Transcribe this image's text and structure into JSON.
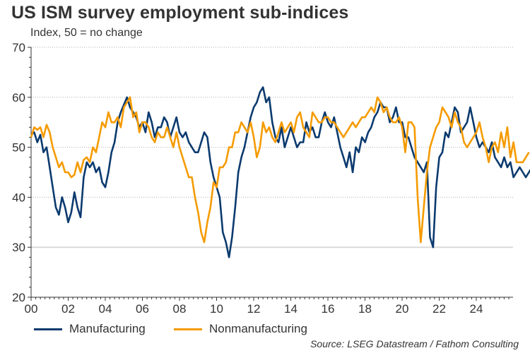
{
  "chart_data": {
    "type": "line",
    "title": "US ISM survey employment sub-indices",
    "subtitle": "Index, 50 = no change",
    "xlabel": "",
    "ylabel": "",
    "ylim": [
      20,
      70
    ],
    "xlim": [
      2000,
      2026
    ],
    "yticks": [
      20,
      30,
      40,
      50,
      60,
      70
    ],
    "xticks": [
      2000,
      2002,
      2004,
      2006,
      2008,
      2010,
      2012,
      2014,
      2016,
      2018,
      2020,
      2022,
      2024
    ],
    "xtick_labels": [
      "00",
      "02",
      "04",
      "06",
      "08",
      "10",
      "12",
      "14",
      "16",
      "18",
      "20",
      "22",
      "24"
    ],
    "grid": true,
    "legend_position": "bottom-left",
    "source": "Source: LSEG Datastream / Fathom Consulting",
    "x_step_years": 0.1667,
    "x_start": 2000.0,
    "series": [
      {
        "name": "Manufacturing",
        "color": "#0b3a6e",
        "values": [
          52.5,
          53,
          51,
          52.5,
          49,
          50,
          46,
          42,
          38,
          36.5,
          40,
          38,
          35,
          37,
          41,
          38,
          36,
          44,
          47,
          46,
          47,
          45,
          46,
          43,
          42,
          45,
          49,
          51,
          55,
          57,
          58.5,
          60,
          58,
          57,
          56,
          54,
          55,
          53,
          57,
          55,
          52,
          54,
          54,
          56,
          55,
          52,
          54,
          56,
          53,
          52,
          53,
          51,
          50,
          49,
          49,
          51,
          53,
          52,
          47,
          44,
          42,
          40,
          33,
          31,
          28,
          32,
          38,
          45,
          48,
          50,
          53,
          56,
          58,
          59,
          61,
          62,
          59,
          60,
          55,
          52,
          51,
          54,
          50,
          52,
          54,
          52,
          50,
          51,
          51,
          55,
          53,
          54,
          52,
          52,
          55,
          57,
          55,
          54,
          56,
          53,
          50,
          48,
          46,
          49,
          45,
          50,
          49,
          52,
          51,
          53,
          54,
          56,
          57,
          59,
          58,
          58,
          55,
          56,
          58,
          55,
          55,
          52,
          52,
          50,
          48,
          47,
          46,
          45,
          47,
          32,
          30,
          42,
          48,
          49,
          53,
          52,
          55,
          58,
          57,
          53,
          54,
          55,
          58,
          55,
          52,
          50,
          51,
          50,
          49,
          51,
          48,
          47,
          46,
          48,
          46,
          47,
          44,
          45,
          46,
          45,
          44,
          45,
          46,
          44
        ]
      },
      {
        "name": "Nonmanufacturing",
        "color": "#f59b00",
        "values": [
          52,
          54,
          53.5,
          54,
          52,
          54.5,
          53,
          50,
          48,
          46,
          47,
          45,
          45,
          44,
          44.5,
          47,
          45,
          47.5,
          48,
          47,
          50,
          49,
          52,
          55,
          54,
          57,
          55,
          55,
          56,
          54,
          58,
          59,
          60,
          56,
          57,
          53,
          55,
          55,
          54,
          52,
          51,
          53,
          52,
          52,
          54,
          52,
          50,
          53,
          50,
          48,
          46,
          44,
          44,
          40,
          37,
          33,
          31,
          35,
          38,
          43,
          42,
          46,
          46,
          47,
          50,
          50,
          53,
          53,
          55,
          54,
          53,
          55,
          52,
          48,
          50,
          55,
          53,
          54,
          52,
          51,
          53,
          55,
          53,
          54,
          55,
          53,
          56,
          57,
          54,
          53,
          52,
          57,
          56,
          55,
          55,
          56,
          56,
          55,
          55,
          54,
          53,
          52,
          53,
          54,
          55,
          54,
          55,
          56,
          56,
          57,
          58,
          57,
          60,
          59,
          57,
          58,
          56,
          55,
          55,
          56,
          54,
          49,
          55,
          55,
          54,
          40,
          31,
          38,
          45,
          50,
          52,
          54,
          55,
          58,
          57,
          56,
          54,
          57,
          55,
          54,
          51,
          50,
          51,
          52,
          53,
          55,
          52,
          50,
          47,
          50,
          51,
          49,
          53,
          50,
          54,
          48,
          51,
          47,
          47,
          47,
          48,
          49
        ]
      }
    ]
  }
}
